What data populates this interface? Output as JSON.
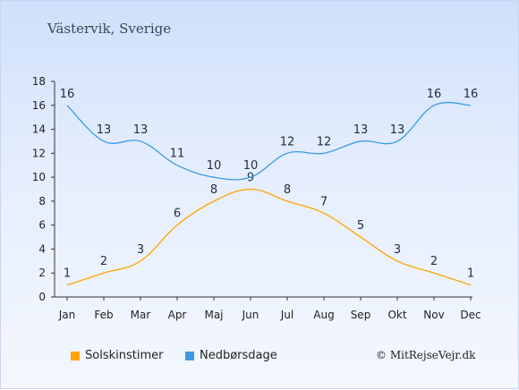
{
  "title": "Västervik, Sverige",
  "credit": "© MitRejseVejr.dk",
  "colors": {
    "sun": "#ffa500",
    "rain": "#3a9ae6",
    "axis": "#333333"
  },
  "legend": {
    "sun_label": "Solskinstimer",
    "rain_label": "Nedbørsdage"
  },
  "chart_data": {
    "type": "line",
    "categories": [
      "Jan",
      "Feb",
      "Mar",
      "Apr",
      "Maj",
      "Jun",
      "Jul",
      "Aug",
      "Sep",
      "Okt",
      "Nov",
      "Dec"
    ],
    "series": [
      {
        "name": "Solskinstimer",
        "values": [
          1,
          2,
          3,
          6,
          8,
          9,
          8,
          7,
          5,
          3,
          2,
          1
        ]
      },
      {
        "name": "Nedbørsdage",
        "values": [
          16,
          13,
          13,
          11,
          10,
          10,
          12,
          12,
          13,
          13,
          16,
          16
        ]
      }
    ],
    "ylim": [
      0,
      18
    ],
    "yticks": [
      0,
      2,
      4,
      6,
      8,
      10,
      12,
      14,
      16,
      18
    ],
    "grid": false,
    "legend_position": "bottom"
  }
}
